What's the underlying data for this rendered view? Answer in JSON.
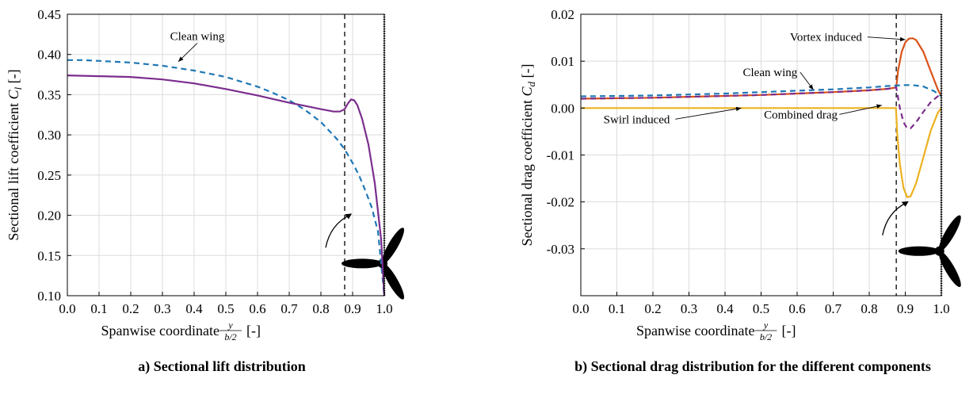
{
  "chart_data": [
    {
      "type": "line",
      "caption": "a) Sectional lift distribution",
      "xlabel": "Spanwise coordinate",
      "xlabel_frac_num": "y",
      "xlabel_frac_den": "b/2",
      "xlabel_unit": "[-]",
      "ylabel": "Sectional lift coefficient",
      "ylabel_symbol": "C",
      "ylabel_sub": "l",
      "ylabel_unit": "[-]",
      "xlim": [
        0,
        1
      ],
      "ylim": [
        0.1,
        0.45
      ],
      "xticks": [
        0.0,
        0.1,
        0.2,
        0.3,
        0.4,
        0.5,
        0.6,
        0.7,
        0.8,
        0.9,
        1.0
      ],
      "xtick_labels": [
        "0.0",
        "0.1",
        "0.2",
        "0.3",
        "0.4",
        "0.5",
        "0.6",
        "0.7",
        "0.8",
        "0.9",
        "1.0"
      ],
      "yticks": [
        0.1,
        0.15,
        0.2,
        0.25,
        0.3,
        0.35,
        0.4,
        0.45
      ],
      "ytick_labels": [
        "0.10",
        "0.15",
        "0.20",
        "0.25",
        "0.30",
        "0.35",
        "0.40",
        "0.45"
      ],
      "grid": true,
      "vline_x": 0.875,
      "series": [
        {
          "name": "Clean wing",
          "color": "#1f77b4",
          "dash": true,
          "x": [
            0,
            0.05,
            0.1,
            0.2,
            0.3,
            0.4,
            0.5,
            0.6,
            0.65,
            0.7,
            0.75,
            0.8,
            0.85,
            0.875,
            0.9,
            0.92,
            0.94,
            0.96,
            0.98,
            1.0
          ],
          "y": [
            0.393,
            0.393,
            0.392,
            0.39,
            0.386,
            0.38,
            0.372,
            0.36,
            0.352,
            0.343,
            0.331,
            0.316,
            0.295,
            0.282,
            0.265,
            0.25,
            0.231,
            0.21,
            0.18,
            0.1
          ]
        },
        {
          "name": "",
          "color": "#7b2d8e",
          "dash": false,
          "x": [
            0,
            0.1,
            0.2,
            0.3,
            0.4,
            0.5,
            0.6,
            0.7,
            0.75,
            0.8,
            0.84,
            0.86,
            0.875,
            0.885,
            0.895,
            0.905,
            0.915,
            0.93,
            0.95,
            0.97,
            0.99,
            1.0
          ],
          "y": [
            0.374,
            0.373,
            0.372,
            0.369,
            0.364,
            0.357,
            0.349,
            0.34,
            0.336,
            0.332,
            0.329,
            0.329,
            0.332,
            0.339,
            0.344,
            0.343,
            0.337,
            0.32,
            0.288,
            0.24,
            0.17,
            0.1
          ]
        }
      ],
      "annotations": [
        {
          "text": "Clean wing",
          "x": 0.41,
          "y": 0.418,
          "arrow_to": [
            0.35,
            0.391
          ]
        }
      ],
      "propeller": {
        "hub_x": 0.995,
        "hub_y": 0.14,
        "arrow_label": ""
      }
    },
    {
      "type": "line",
      "caption": "b) Sectional drag distribution for the different components",
      "xlabel": "Spanwise coordinate",
      "xlabel_frac_num": "y",
      "xlabel_frac_den": "b/2",
      "xlabel_unit": "[-]",
      "ylabel": "Sectional drag coefficient",
      "ylabel_symbol": "C",
      "ylabel_sub": "d",
      "ylabel_unit": "[-]",
      "xlim": [
        0,
        1
      ],
      "ylim": [
        -0.04,
        0.02
      ],
      "xticks": [
        0.0,
        0.1,
        0.2,
        0.3,
        0.4,
        0.5,
        0.6,
        0.7,
        0.8,
        0.9,
        1.0
      ],
      "xtick_labels": [
        "0.0",
        "0.1",
        "0.2",
        "0.3",
        "0.4",
        "0.5",
        "0.6",
        "0.7",
        "0.8",
        "0.9",
        "1.0"
      ],
      "yticks": [
        -0.03,
        -0.02,
        -0.01,
        0.0,
        0.01,
        0.02
      ],
      "ytick_labels": [
        "-0.03",
        "-0.02",
        "-0.01",
        "0.00",
        "0.01",
        "0.02"
      ],
      "grid": true,
      "vline_x": 0.875,
      "series": [
        {
          "name": "Vortex induced",
          "color": "#d95319",
          "dash": false,
          "x": [
            0,
            0.1,
            0.2,
            0.3,
            0.4,
            0.5,
            0.6,
            0.7,
            0.8,
            0.85,
            0.875,
            0.88,
            0.89,
            0.9,
            0.91,
            0.92,
            0.93,
            0.95,
            0.97,
            0.99,
            1.0
          ],
          "y": [
            0.002,
            0.0021,
            0.0022,
            0.0024,
            0.0026,
            0.0028,
            0.0031,
            0.0034,
            0.0038,
            0.0041,
            0.0044,
            0.008,
            0.012,
            0.014,
            0.0148,
            0.0149,
            0.0145,
            0.012,
            0.008,
            0.004,
            0.0025
          ]
        },
        {
          "name": "Clean wing",
          "color": "#1f77b4",
          "dash": true,
          "x": [
            0,
            0.1,
            0.2,
            0.3,
            0.4,
            0.5,
            0.6,
            0.7,
            0.8,
            0.85,
            0.9,
            0.92,
            0.95,
            0.98,
            1.0
          ],
          "y": [
            0.0025,
            0.0026,
            0.0027,
            0.0029,
            0.0031,
            0.0034,
            0.0037,
            0.004,
            0.0044,
            0.0047,
            0.0049,
            0.0049,
            0.0046,
            0.0036,
            0.0025
          ]
        },
        {
          "name": "Combined drag",
          "color": "#7b2d8e",
          "dash": true,
          "x": [
            0,
            0.1,
            0.2,
            0.3,
            0.4,
            0.5,
            0.6,
            0.7,
            0.8,
            0.85,
            0.875,
            0.885,
            0.895,
            0.905,
            0.915,
            0.93,
            0.95,
            0.97,
            0.99,
            1.0
          ],
          "y": [
            0.002,
            0.0021,
            0.0022,
            0.0024,
            0.0026,
            0.0028,
            0.0031,
            0.0034,
            0.0038,
            0.0041,
            0.0044,
            0.0,
            -0.003,
            -0.0043,
            -0.0043,
            -0.003,
            -0.0008,
            0.0012,
            0.0025,
            0.003
          ]
        },
        {
          "name": "Swirl induced",
          "color": "#edb120",
          "dash": false,
          "x": [
            0,
            0.2,
            0.4,
            0.6,
            0.8,
            0.874,
            0.878,
            0.885,
            0.895,
            0.905,
            0.915,
            0.93,
            0.95,
            0.97,
            0.99,
            1.0
          ],
          "y": [
            0,
            0,
            0,
            0,
            0,
            0,
            -0.006,
            -0.012,
            -0.017,
            -0.019,
            -0.0188,
            -0.016,
            -0.0105,
            -0.005,
            -0.001,
            0
          ]
        }
      ],
      "annotations": [
        {
          "text": "Vortex induced",
          "x": 0.68,
          "y": 0.0143,
          "arrow_to": [
            0.9,
            0.0146
          ]
        },
        {
          "text": "Clean wing",
          "x": 0.525,
          "y": 0.0068,
          "arrow_to": [
            0.645,
            0.0039
          ]
        },
        {
          "text": "Combined drag",
          "x": 0.61,
          "y": -0.0022,
          "arrow_to": [
            0.835,
            0.0006
          ]
        },
        {
          "text": "Swirl induced",
          "x": 0.155,
          "y": -0.0032,
          "arrow_to": [
            0.445,
            0.0
          ]
        }
      ],
      "propeller": {
        "hub_x": 0.995,
        "hub_y": -0.0305,
        "arrow_label": ""
      }
    }
  ]
}
